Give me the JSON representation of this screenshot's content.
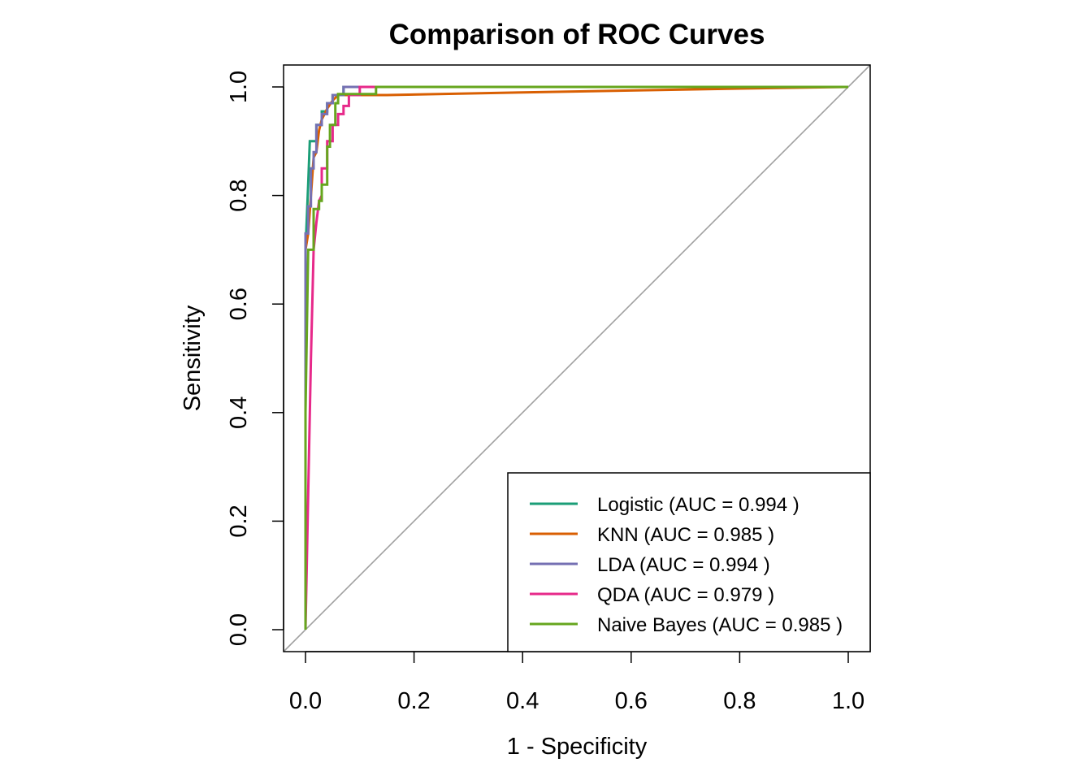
{
  "chart_data": {
    "type": "line",
    "title": "Comparison of ROC Curves",
    "xlabel": "1 - Specificity",
    "ylabel": "Sensitivity",
    "xlim": [
      0,
      1
    ],
    "ylim": [
      0,
      1
    ],
    "x_ticks": [
      "0.0",
      "0.2",
      "0.4",
      "0.6",
      "0.8",
      "1.0"
    ],
    "y_ticks": [
      "0.0",
      "0.2",
      "0.4",
      "0.6",
      "0.8",
      "1.0"
    ],
    "grid": false,
    "legend_position": "bottom-right",
    "reference_line": {
      "from": [
        0,
        0
      ],
      "to": [
        1,
        1
      ],
      "color": "#a0a0a0"
    },
    "series": [
      {
        "name": "Logistic (AUC = 0.994 )",
        "color": "#1b9e77",
        "points": [
          [
            0,
            0
          ],
          [
            0,
            0.3
          ],
          [
            0,
            0.7
          ],
          [
            0.005,
            0.82
          ],
          [
            0.008,
            0.9
          ],
          [
            0.02,
            0.9
          ],
          [
            0.02,
            0.93
          ],
          [
            0.03,
            0.93
          ],
          [
            0.03,
            0.955
          ],
          [
            0.04,
            0.955
          ],
          [
            0.04,
            0.97
          ],
          [
            0.05,
            0.97
          ],
          [
            0.05,
            0.985
          ],
          [
            0.07,
            0.985
          ],
          [
            0.07,
            1
          ],
          [
            0.1,
            1
          ],
          [
            1,
            1
          ]
        ]
      },
      {
        "name": "KNN (AUC = 0.985 )",
        "color": "#d95f02",
        "points": [
          [
            0,
            0
          ],
          [
            0,
            0.4
          ],
          [
            0,
            0.7
          ],
          [
            0.005,
            0.73
          ],
          [
            0.01,
            0.8
          ],
          [
            0.015,
            0.87
          ],
          [
            0.02,
            0.88
          ],
          [
            0.025,
            0.92
          ],
          [
            0.03,
            0.94
          ],
          [
            0.04,
            0.96
          ],
          [
            0.05,
            0.975
          ],
          [
            0.06,
            0.985
          ],
          [
            0.15,
            0.985
          ],
          [
            0.4,
            0.99
          ],
          [
            0.8,
            0.997
          ],
          [
            1,
            1
          ]
        ]
      },
      {
        "name": "LDA (AUC = 0.994 )",
        "color": "#7570b3",
        "points": [
          [
            0,
            0
          ],
          [
            0,
            0.73
          ],
          [
            0.005,
            0.73
          ],
          [
            0.005,
            0.78
          ],
          [
            0.01,
            0.78
          ],
          [
            0.01,
            0.85
          ],
          [
            0.015,
            0.85
          ],
          [
            0.015,
            0.88
          ],
          [
            0.02,
            0.88
          ],
          [
            0.02,
            0.93
          ],
          [
            0.03,
            0.93
          ],
          [
            0.03,
            0.95
          ],
          [
            0.04,
            0.95
          ],
          [
            0.04,
            0.97
          ],
          [
            0.05,
            0.97
          ],
          [
            0.05,
            0.985
          ],
          [
            0.07,
            0.985
          ],
          [
            0.07,
            1
          ],
          [
            0.12,
            1
          ],
          [
            1,
            1
          ]
        ]
      },
      {
        "name": "QDA (AUC = 0.979 )",
        "color": "#e7298a",
        "points": [
          [
            0,
            0
          ],
          [
            0.005,
            0.25
          ],
          [
            0.01,
            0.5
          ],
          [
            0.015,
            0.7
          ],
          [
            0.02,
            0.75
          ],
          [
            0.025,
            0.79
          ],
          [
            0.03,
            0.8
          ],
          [
            0.03,
            0.85
          ],
          [
            0.04,
            0.85
          ],
          [
            0.04,
            0.9
          ],
          [
            0.05,
            0.9
          ],
          [
            0.05,
            0.93
          ],
          [
            0.06,
            0.93
          ],
          [
            0.06,
            0.95
          ],
          [
            0.07,
            0.95
          ],
          [
            0.07,
            0.965
          ],
          [
            0.08,
            0.965
          ],
          [
            0.08,
            0.985
          ],
          [
            0.1,
            0.985
          ],
          [
            0.1,
            1
          ],
          [
            0.15,
            1
          ],
          [
            1,
            1
          ]
        ]
      },
      {
        "name": "Naive Bayes (AUC = 0.985 )",
        "color": "#66a61e",
        "points": [
          [
            0,
            0
          ],
          [
            0,
            0.4
          ],
          [
            0.005,
            0.7
          ],
          [
            0.015,
            0.7
          ],
          [
            0.015,
            0.775
          ],
          [
            0.025,
            0.775
          ],
          [
            0.025,
            0.79
          ],
          [
            0.03,
            0.79
          ],
          [
            0.03,
            0.82
          ],
          [
            0.04,
            0.82
          ],
          [
            0.04,
            0.89
          ],
          [
            0.045,
            0.89
          ],
          [
            0.045,
            0.93
          ],
          [
            0.055,
            0.93
          ],
          [
            0.055,
            0.97
          ],
          [
            0.06,
            0.97
          ],
          [
            0.06,
            0.987
          ],
          [
            0.13,
            0.987
          ],
          [
            0.13,
            1
          ],
          [
            1,
            1
          ]
        ]
      }
    ]
  }
}
